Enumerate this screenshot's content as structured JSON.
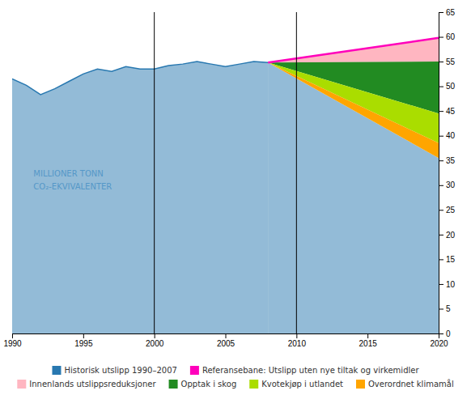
{
  "chart_data": {
    "type": "area",
    "xlim": [
      1990,
      2020
    ],
    "xticks": [
      1990,
      1995,
      2000,
      2005,
      2010,
      2015,
      2020
    ],
    "ylim": [
      0,
      65
    ],
    "yticks": [
      0,
      5,
      10,
      15,
      20,
      25,
      30,
      35,
      40,
      45,
      50,
      55,
      60,
      65
    ],
    "grid": false,
    "legend": "bottom",
    "series": [
      {
        "name": "Historisk utslipp 1990–2007",
        "type": "area",
        "color": "#2878b0",
        "x": [
          1990,
          1991,
          1992,
          1993,
          1994,
          1995,
          1996,
          1997,
          1998,
          1999,
          2000,
          2001,
          2002,
          2003,
          2004,
          2005,
          2006,
          2007,
          2008
        ],
        "values": [
          51.5,
          50.2,
          48.3,
          49.5,
          51.0,
          52.5,
          53.5,
          53.0,
          54.0,
          53.5,
          53.5,
          54.2,
          54.5,
          55.0,
          54.5,
          54.0,
          54.5,
          55.0,
          54.8
        ]
      },
      {
        "name": "Referansebane: Utslipp uten nye tiltak og virkemidler",
        "type": "line",
        "color": "#ff00bb",
        "x": [
          2008,
          2020
        ],
        "values": [
          54.8,
          59.8
        ]
      },
      {
        "name": "Innenlands utslippsreduksjoner",
        "type": "area",
        "stacked": true,
        "color": "#ffb6c1",
        "x": [
          2008,
          2020
        ],
        "values": [
          54.8,
          55.0
        ]
      },
      {
        "name": "Opptak i skog",
        "type": "area",
        "stacked": true,
        "color": "#228B22",
        "x": [
          2008,
          2020
        ],
        "values": [
          54.8,
          44.5
        ]
      },
      {
        "name": "Kvotekjøp i utlandet",
        "type": "area",
        "stacked": true,
        "color": "#aadd00",
        "x": [
          2008,
          2020
        ],
        "values": [
          54.8,
          38.5
        ]
      },
      {
        "name": "Overordnet klimamål",
        "type": "area",
        "stacked": true,
        "color": "#FFA500",
        "x": [
          2008,
          2020
        ],
        "values": [
          54.8,
          35.5
        ]
      }
    ],
    "vlines": [
      2000,
      2010
    ],
    "annotations": [
      {
        "text": "MILLIONER TONN\nCO₂-EKVIVALENTER",
        "x": 1991.5,
        "y": 31,
        "color": "#5598c8"
      }
    ]
  }
}
